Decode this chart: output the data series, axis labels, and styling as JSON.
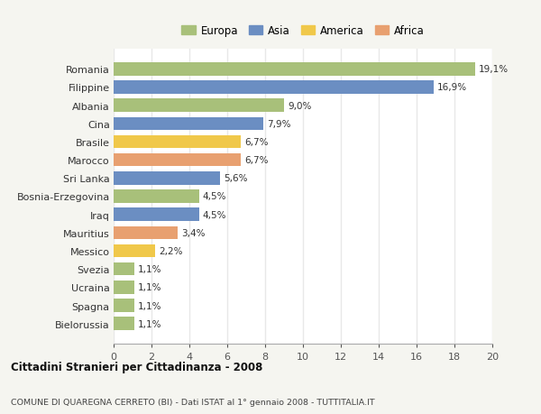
{
  "countries": [
    "Romania",
    "Filippine",
    "Albania",
    "Cina",
    "Brasile",
    "Marocco",
    "Sri Lanka",
    "Bosnia-Erzegovina",
    "Iraq",
    "Mauritius",
    "Messico",
    "Svezia",
    "Ucraina",
    "Spagna",
    "Bielorussia"
  ],
  "values": [
    19.1,
    16.9,
    9.0,
    7.9,
    6.7,
    6.7,
    5.6,
    4.5,
    4.5,
    3.4,
    2.2,
    1.1,
    1.1,
    1.1,
    1.1
  ],
  "labels": [
    "19,1%",
    "16,9%",
    "9,0%",
    "7,9%",
    "6,7%",
    "6,7%",
    "5,6%",
    "4,5%",
    "4,5%",
    "3,4%",
    "2,2%",
    "1,1%",
    "1,1%",
    "1,1%",
    "1,1%"
  ],
  "continents": [
    "Europa",
    "Asia",
    "Europa",
    "Asia",
    "America",
    "Africa",
    "Asia",
    "Europa",
    "Asia",
    "Africa",
    "America",
    "Europa",
    "Europa",
    "Europa",
    "Europa"
  ],
  "colors": {
    "Europa": "#a8c07a",
    "Asia": "#6b8ec2",
    "America": "#f0c84a",
    "Africa": "#e8a070"
  },
  "legend_order": [
    "Europa",
    "Asia",
    "America",
    "Africa"
  ],
  "title1": "Cittadini Stranieri per Cittadinanza - 2008",
  "title2": "COMUNE DI QUAREGNA CERRETO (BI) - Dati ISTAT al 1° gennaio 2008 - TUTTITALIA.IT",
  "xlim": [
    0,
    20
  ],
  "xticks": [
    0,
    2,
    4,
    6,
    8,
    10,
    12,
    14,
    16,
    18,
    20
  ],
  "plot_bg": "#ffffff",
  "fig_bg": "#f5f5f0",
  "grid_color": "#e8e8e8"
}
